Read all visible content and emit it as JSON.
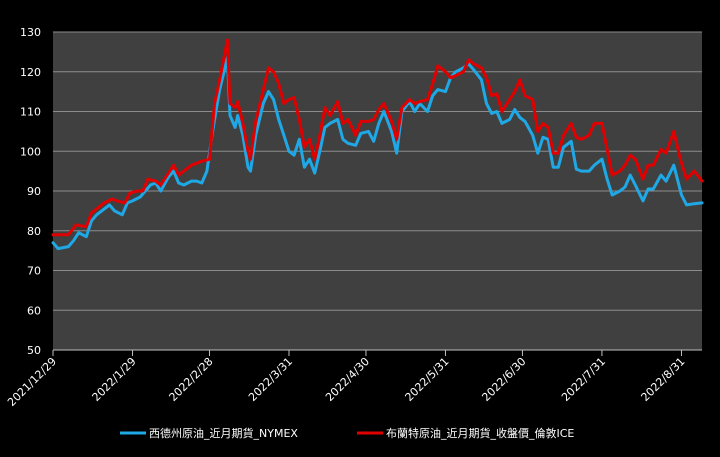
{
  "chart_data": {
    "type": "line",
    "title": "",
    "xlabel": "",
    "ylabel": "",
    "ylim": [
      50,
      130
    ],
    "yticks": [
      50,
      60,
      70,
      80,
      90,
      100,
      110,
      120,
      130
    ],
    "xlim": [
      "2021-12-29",
      "2022-09-08"
    ],
    "x_ticks": [
      "2021/12/29",
      "2022/1/29",
      "2022/2/28",
      "2022/3/31",
      "2022/4/30",
      "2022/5/31",
      "2022/6/30",
      "2022/7/31",
      "2022/8/31"
    ],
    "grid": "horizontal",
    "legend_position": "bottom",
    "colors": {
      "background": "#000000",
      "plot_area": "#404040",
      "grid": "#8c8c8c",
      "text": "#ffffff"
    },
    "series": [
      {
        "name": "西德州原油_近月期貨_NYMEX",
        "color": "#1fa8e6",
        "points": [
          [
            "2021-12-29",
            77
          ],
          [
            "2021-12-31",
            75.5
          ],
          [
            "2022-01-04",
            76
          ],
          [
            "2022-01-06",
            77.5
          ],
          [
            "2022-01-08",
            79.5
          ],
          [
            "2022-01-11",
            78.5
          ],
          [
            "2022-01-13",
            82.5
          ],
          [
            "2022-01-15",
            84
          ],
          [
            "2022-01-18",
            85.5
          ],
          [
            "2022-01-20",
            86.5
          ],
          [
            "2022-01-22",
            85
          ],
          [
            "2022-01-25",
            84
          ],
          [
            "2022-01-27",
            87
          ],
          [
            "2022-01-29",
            87.5
          ],
          [
            "2022-02-01",
            88.5
          ],
          [
            "2022-02-03",
            90
          ],
          [
            "2022-02-05",
            91.5
          ],
          [
            "2022-02-07",
            92
          ],
          [
            "2022-02-09",
            90
          ],
          [
            "2022-02-12",
            93.5
          ],
          [
            "2022-02-14",
            95
          ],
          [
            "2022-02-16",
            92
          ],
          [
            "2022-02-18",
            91.5
          ],
          [
            "2022-02-21",
            92.5
          ],
          [
            "2022-02-23",
            92.5
          ],
          [
            "2022-02-25",
            92
          ],
          [
            "2022-02-27",
            95
          ],
          [
            "2022-03-01",
            104
          ],
          [
            "2022-03-02",
            108
          ],
          [
            "2022-03-04",
            115.5
          ],
          [
            "2022-03-07",
            123.5
          ],
          [
            "2022-03-08",
            109
          ],
          [
            "2022-03-10",
            106
          ],
          [
            "2022-03-11",
            109
          ],
          [
            "2022-03-13",
            104
          ],
          [
            "2022-03-15",
            96
          ],
          [
            "2022-03-16",
            95
          ],
          [
            "2022-03-18",
            104
          ],
          [
            "2022-03-21",
            112
          ],
          [
            "2022-03-23",
            115
          ],
          [
            "2022-03-25",
            113
          ],
          [
            "2022-03-27",
            108
          ],
          [
            "2022-03-29",
            104
          ],
          [
            "2022-03-31",
            100
          ],
          [
            "2022-04-02",
            99
          ],
          [
            "2022-04-04",
            103
          ],
          [
            "2022-04-06",
            96
          ],
          [
            "2022-04-08",
            98
          ],
          [
            "2022-04-10",
            94.5
          ],
          [
            "2022-04-12",
            100
          ],
          [
            "2022-04-14",
            106
          ],
          [
            "2022-04-16",
            107
          ],
          [
            "2022-04-19",
            108
          ],
          [
            "2022-04-21",
            103
          ],
          [
            "2022-04-23",
            102
          ],
          [
            "2022-04-26",
            101.5
          ],
          [
            "2022-04-28",
            104.5
          ],
          [
            "2022-05-01",
            105
          ],
          [
            "2022-05-03",
            102.5
          ],
          [
            "2022-05-05",
            107
          ],
          [
            "2022-05-07",
            110
          ],
          [
            "2022-05-10",
            105
          ],
          [
            "2022-05-12",
            99.5
          ],
          [
            "2022-05-14",
            110
          ],
          [
            "2022-05-17",
            112.5
          ],
          [
            "2022-05-19",
            110
          ],
          [
            "2022-05-21",
            112
          ],
          [
            "2022-05-24",
            110
          ],
          [
            "2022-05-26",
            114
          ],
          [
            "2022-05-28",
            115.5
          ],
          [
            "2022-05-31",
            115
          ],
          [
            "2022-06-02",
            118.5
          ],
          [
            "2022-06-04",
            120
          ],
          [
            "2022-06-07",
            121
          ],
          [
            "2022-06-09",
            122
          ],
          [
            "2022-06-11",
            120.5
          ],
          [
            "2022-06-14",
            118
          ],
          [
            "2022-06-16",
            112
          ],
          [
            "2022-06-18",
            109.5
          ],
          [
            "2022-06-20",
            110
          ],
          [
            "2022-06-22",
            107
          ],
          [
            "2022-06-25",
            108
          ],
          [
            "2022-06-27",
            110.5
          ],
          [
            "2022-06-29",
            108.5
          ],
          [
            "2022-07-01",
            107.5
          ],
          [
            "2022-07-04",
            104
          ],
          [
            "2022-07-06",
            99.5
          ],
          [
            "2022-07-08",
            103.5
          ],
          [
            "2022-07-10",
            103
          ],
          [
            "2022-07-12",
            96
          ],
          [
            "2022-07-14",
            96
          ],
          [
            "2022-07-16",
            101
          ],
          [
            "2022-07-19",
            102.5
          ],
          [
            "2022-07-21",
            95.5
          ],
          [
            "2022-07-23",
            95
          ],
          [
            "2022-07-26",
            95
          ],
          [
            "2022-07-28",
            96.5
          ],
          [
            "2022-07-31",
            98
          ],
          [
            "2022-08-02",
            93
          ],
          [
            "2022-08-04",
            89
          ],
          [
            "2022-08-07",
            90
          ],
          [
            "2022-08-09",
            91
          ],
          [
            "2022-08-11",
            94
          ],
          [
            "2022-08-13",
            91.5
          ],
          [
            "2022-08-16",
            87.5
          ],
          [
            "2022-08-18",
            90.5
          ],
          [
            "2022-08-20",
            90.5
          ],
          [
            "2022-08-23",
            94
          ],
          [
            "2022-08-25",
            92.5
          ],
          [
            "2022-08-28",
            96.5
          ],
          [
            "2022-08-30",
            91.5
          ],
          [
            "2022-08-31",
            89
          ],
          [
            "2022-09-02",
            86.5
          ],
          [
            "2022-09-05",
            86.8
          ],
          [
            "2022-09-08",
            87
          ]
        ]
      },
      {
        "name": "布蘭特原油_近月期貨_收盤價_倫敦ICE",
        "color": "#e00000",
        "points": [
          [
            "2021-12-29",
            79
          ],
          [
            "2022-01-01",
            79
          ],
          [
            "2022-01-04",
            79
          ],
          [
            "2022-01-07",
            81.5
          ],
          [
            "2022-01-11",
            81
          ],
          [
            "2022-01-13",
            84.5
          ],
          [
            "2022-01-15",
            85.5
          ],
          [
            "2022-01-18",
            87
          ],
          [
            "2022-01-21",
            88
          ],
          [
            "2022-01-23",
            87.5
          ],
          [
            "2022-01-26",
            87
          ],
          [
            "2022-01-28",
            89.5
          ],
          [
            "2022-01-31",
            90
          ],
          [
            "2022-02-02",
            90
          ],
          [
            "2022-02-04",
            93
          ],
          [
            "2022-02-07",
            92.5
          ],
          [
            "2022-02-09",
            91.5
          ],
          [
            "2022-02-12",
            94.5
          ],
          [
            "2022-02-14",
            96.5
          ],
          [
            "2022-02-16",
            94
          ],
          [
            "2022-02-18",
            95
          ],
          [
            "2022-02-21",
            96.5
          ],
          [
            "2022-02-23",
            97
          ],
          [
            "2022-02-25",
            97.5
          ],
          [
            "2022-02-28",
            98
          ],
          [
            "2022-03-01",
            105
          ],
          [
            "2022-03-02",
            112
          ],
          [
            "2022-03-04",
            118
          ],
          [
            "2022-03-07",
            128
          ],
          [
            "2022-03-08",
            112
          ],
          [
            "2022-03-10",
            111
          ],
          [
            "2022-03-11",
            112.5
          ],
          [
            "2022-03-13",
            107
          ],
          [
            "2022-03-15",
            100
          ],
          [
            "2022-03-16",
            98
          ],
          [
            "2022-03-18",
            107.5
          ],
          [
            "2022-03-21",
            115.5
          ],
          [
            "2022-03-23",
            121
          ],
          [
            "2022-03-25",
            120
          ],
          [
            "2022-03-27",
            117
          ],
          [
            "2022-03-29",
            112
          ],
          [
            "2022-03-31",
            113
          ],
          [
            "2022-04-02",
            113.5
          ],
          [
            "2022-04-04",
            108
          ],
          [
            "2022-04-06",
            101
          ],
          [
            "2022-04-08",
            103
          ],
          [
            "2022-04-10",
            98
          ],
          [
            "2022-04-12",
            104
          ],
          [
            "2022-04-14",
            111
          ],
          [
            "2022-04-16",
            109
          ],
          [
            "2022-04-19",
            112.5
          ],
          [
            "2022-04-21",
            107
          ],
          [
            "2022-04-23",
            108
          ],
          [
            "2022-04-26",
            104
          ],
          [
            "2022-04-28",
            107.5
          ],
          [
            "2022-05-01",
            107.5
          ],
          [
            "2022-05-03",
            108
          ],
          [
            "2022-05-05",
            110.5
          ],
          [
            "2022-05-07",
            112
          ],
          [
            "2022-05-10",
            107.5
          ],
          [
            "2022-05-12",
            103
          ],
          [
            "2022-05-14",
            111
          ],
          [
            "2022-05-17",
            113
          ],
          [
            "2022-05-19",
            112
          ],
          [
            "2022-05-21",
            112.5
          ],
          [
            "2022-05-24",
            113
          ],
          [
            "2022-05-26",
            117
          ],
          [
            "2022-05-28",
            121.5
          ],
          [
            "2022-05-31",
            120
          ],
          [
            "2022-06-02",
            118.5
          ],
          [
            "2022-06-04",
            119
          ],
          [
            "2022-06-07",
            120
          ],
          [
            "2022-06-09",
            123
          ],
          [
            "2022-06-11",
            122
          ],
          [
            "2022-06-14",
            121
          ],
          [
            "2022-06-16",
            118.5
          ],
          [
            "2022-06-18",
            114
          ],
          [
            "2022-06-20",
            114.5
          ],
          [
            "2022-06-22",
            110
          ],
          [
            "2022-06-25",
            113
          ],
          [
            "2022-06-27",
            115
          ],
          [
            "2022-06-29",
            118
          ],
          [
            "2022-07-01",
            114
          ],
          [
            "2022-07-04",
            113
          ],
          [
            "2022-07-06",
            105
          ],
          [
            "2022-07-08",
            107
          ],
          [
            "2022-07-10",
            106
          ],
          [
            "2022-07-12",
            99.5
          ],
          [
            "2022-07-14",
            99.5
          ],
          [
            "2022-07-16",
            104
          ],
          [
            "2022-07-19",
            107
          ],
          [
            "2022-07-21",
            103.5
          ],
          [
            "2022-07-23",
            103
          ],
          [
            "2022-07-26",
            104
          ],
          [
            "2022-07-28",
            107
          ],
          [
            "2022-07-31",
            107
          ],
          [
            "2022-08-02",
            100.5
          ],
          [
            "2022-08-04",
            94
          ],
          [
            "2022-08-07",
            95
          ],
          [
            "2022-08-09",
            96.5
          ],
          [
            "2022-08-11",
            99
          ],
          [
            "2022-08-13",
            98
          ],
          [
            "2022-08-16",
            93
          ],
          [
            "2022-08-18",
            96.5
          ],
          [
            "2022-08-20",
            96.5
          ],
          [
            "2022-08-23",
            100.5
          ],
          [
            "2022-08-25",
            99.5
          ],
          [
            "2022-08-28",
            105
          ],
          [
            "2022-08-30",
            99.5
          ],
          [
            "2022-08-31",
            97
          ],
          [
            "2022-09-02",
            93
          ],
          [
            "2022-09-05",
            95
          ],
          [
            "2022-09-08",
            92.5
          ]
        ]
      }
    ]
  }
}
